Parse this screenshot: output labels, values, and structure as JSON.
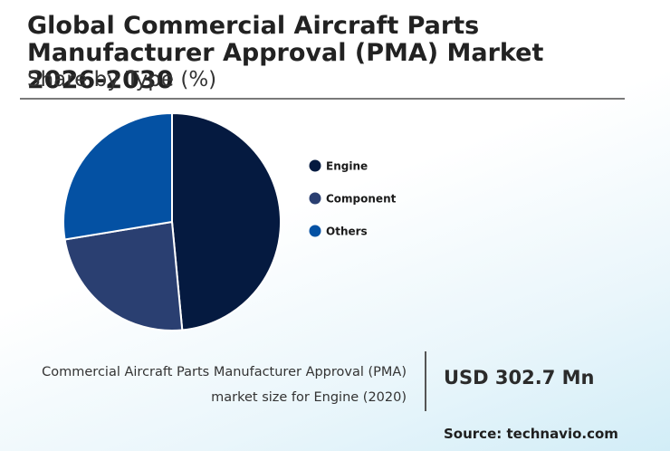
{
  "header": {
    "title": "Global Commercial Aircraft Parts Manufacturer Approval (PMA) Market 2026-2030",
    "subtitle": "Share by Type (%)"
  },
  "chart_data": {
    "type": "pie",
    "title": "Global Commercial Aircraft Parts Manufacturer Approval (PMA) Market 2026-2030",
    "subtitle": "Share by Type (%)",
    "legend_position": "right",
    "slices": [
      {
        "label": "Engine",
        "value": 48.5,
        "color": "#051a40"
      },
      {
        "label": "Component",
        "value": 23.9,
        "color": "#2a3f71"
      },
      {
        "label": "Others",
        "value": 27.6,
        "color": "#0451a3"
      }
    ]
  },
  "footer": {
    "caption_line1": "Commercial Aircraft Parts Manufacturer Approval (PMA)",
    "caption_line2": "market size for Engine (2020)",
    "kpi_value": "USD 302.7 Mn",
    "source": "Source: technavio.com"
  }
}
